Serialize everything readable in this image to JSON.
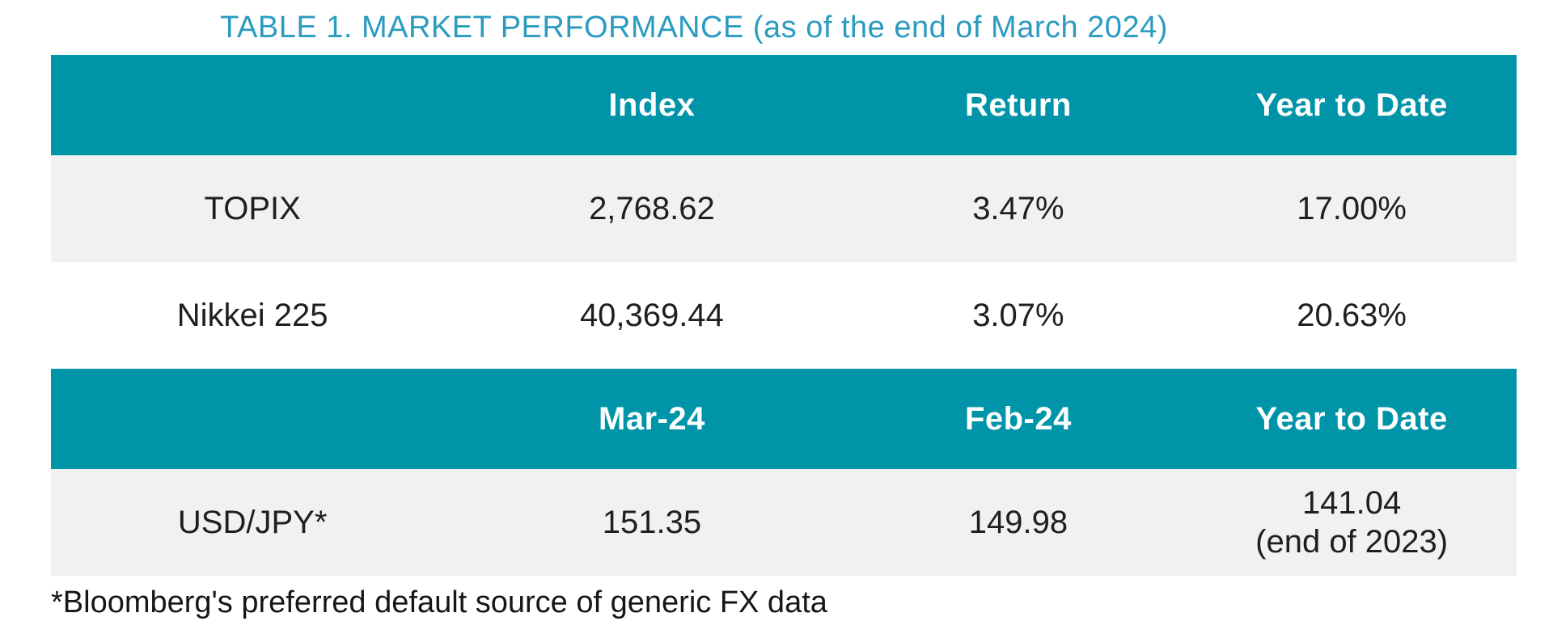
{
  "title": {
    "main": "TABLE 1. MARKET PERFORMANCE",
    "suffix": " (as of the end of March 2024)"
  },
  "colors": {
    "header_teal": "#0094a8",
    "title_blue": "#2b9bc0",
    "row_alt_gray": "#f1f1f1",
    "body_text": "#1f1f1f"
  },
  "table1": {
    "headers": [
      "",
      "Index",
      "Return",
      "Year to Date"
    ],
    "rows": [
      {
        "label": "TOPIX",
        "values": [
          "2,768.62",
          "3.47%",
          "17.00%"
        ]
      },
      {
        "label": "Nikkei 225",
        "values": [
          "40,369.44",
          "3.07%",
          "20.63%"
        ]
      }
    ]
  },
  "table2": {
    "headers": [
      "",
      "Mar-24",
      "Feb-24",
      "Year to Date"
    ],
    "rows": [
      {
        "label": "USD/JPY*",
        "values": [
          "151.35",
          "149.98",
          "141.04\n(end of 2023)"
        ]
      }
    ]
  },
  "footnote": "*Bloomberg's preferred default source of generic FX data"
}
